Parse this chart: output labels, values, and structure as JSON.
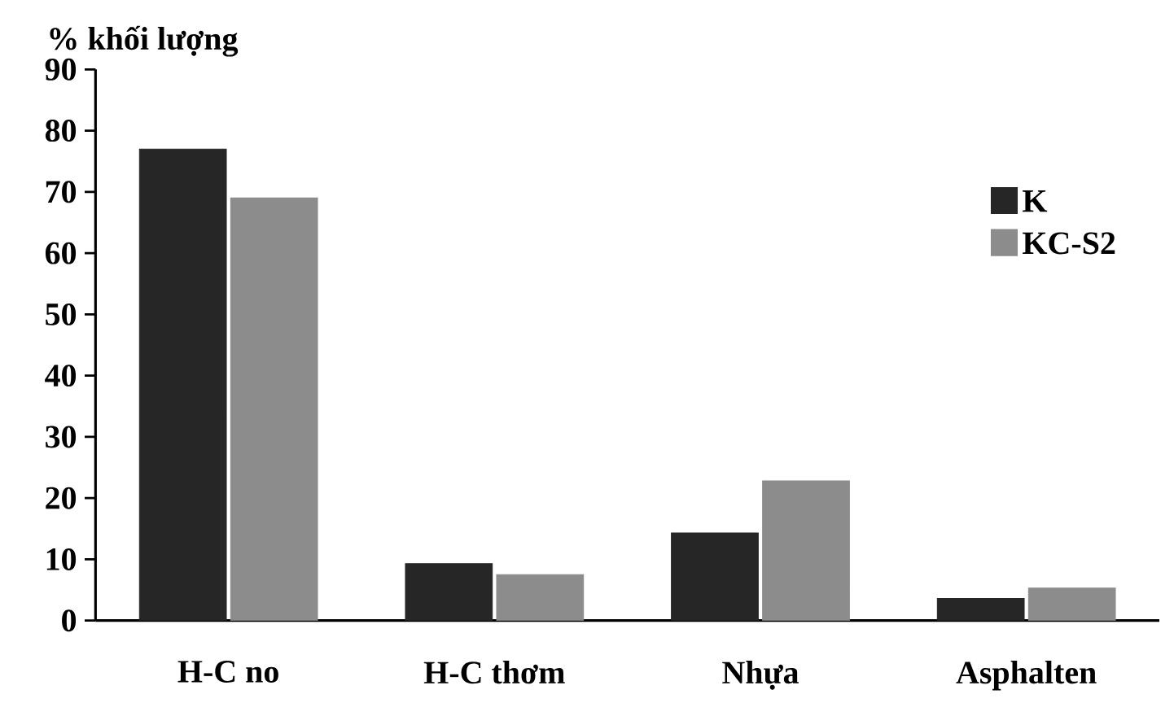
{
  "chart_data": {
    "type": "bar",
    "ylabel": "% khối lượng",
    "categories": [
      "H-C no",
      "H-C thơm",
      "Nhựa",
      "Asphalten"
    ],
    "series": [
      {
        "name": "K",
        "color": "#262626",
        "values": [
          77,
          9.3,
          14.3,
          3.6
        ]
      },
      {
        "name": "KC-S2",
        "color": "#8c8c8c",
        "values": [
          69,
          7.5,
          22.8,
          5.3
        ]
      }
    ],
    "ylim": [
      0,
      90
    ],
    "yticks": [
      0,
      10,
      20,
      30,
      40,
      50,
      60,
      70,
      80,
      90
    ],
    "legend": "right"
  }
}
